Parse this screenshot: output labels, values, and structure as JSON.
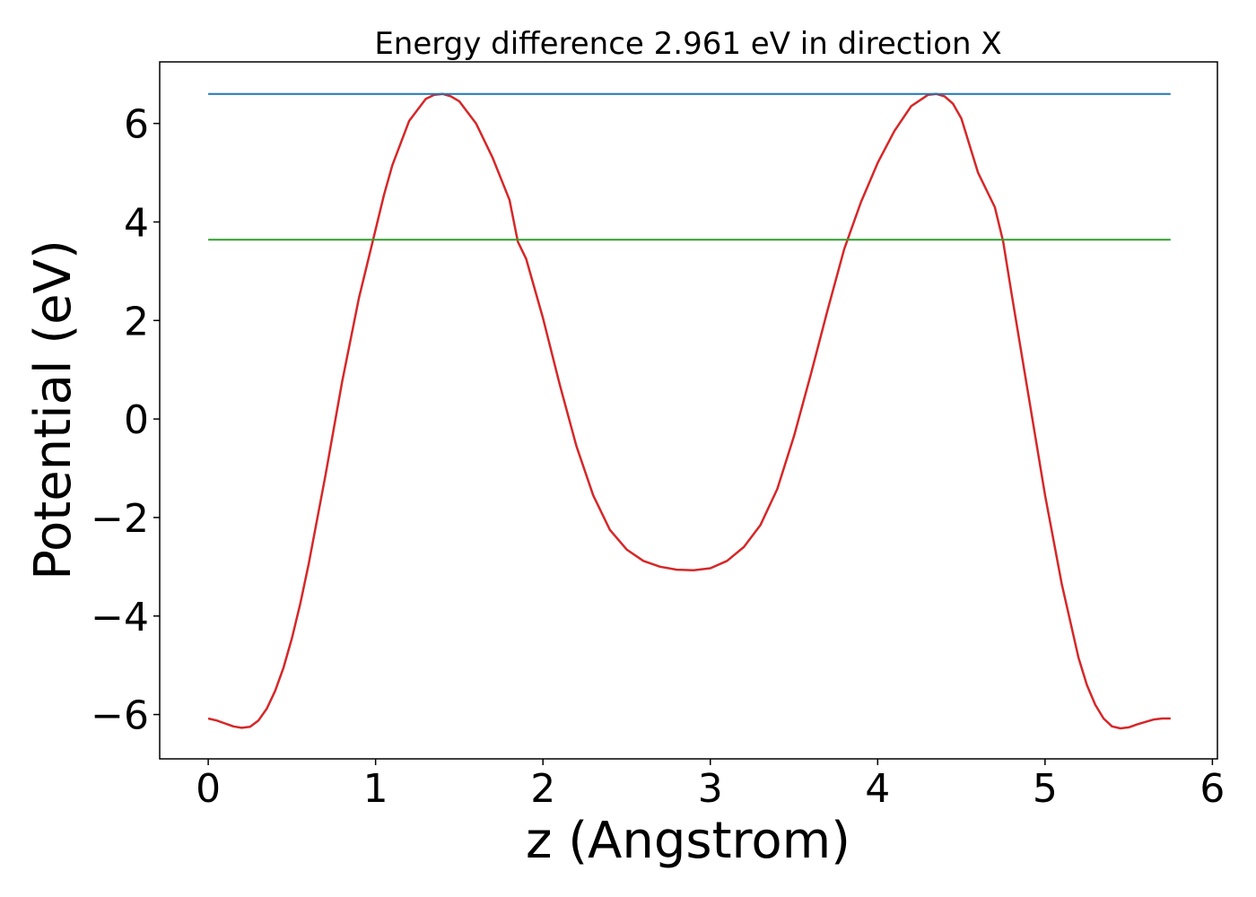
{
  "chart_data": {
    "type": "line",
    "title": "Energy difference 2.961 eV in direction X",
    "xlabel": "z (Angstrom)",
    "ylabel": "Potential (eV)",
    "xlim": [
      -0.29,
      6.03
    ],
    "ylim": [
      -6.9,
      7.25
    ],
    "xticks": [
      0,
      1,
      2,
      3,
      4,
      5,
      6
    ],
    "xtick_labels": [
      "0",
      "1",
      "2",
      "3",
      "4",
      "5",
      "6"
    ],
    "yticks": [
      -6,
      -4,
      -2,
      0,
      2,
      4,
      6
    ],
    "ytick_labels": [
      "−6",
      "−4",
      "−2",
      "0",
      "2",
      "4",
      "6"
    ],
    "grid": false,
    "series": [
      {
        "color": "#d62728",
        "x": [
          0,
          0.05,
          0.1,
          0.15,
          0.2,
          0.25,
          0.3,
          0.35,
          0.4,
          0.45,
          0.5,
          0.55,
          0.6,
          0.7,
          0.8,
          0.9,
          1.0,
          1.05,
          1.1,
          1.2,
          1.3,
          1.35,
          1.4,
          1.45,
          1.5,
          1.6,
          1.7,
          1.8,
          1.85,
          1.9,
          2.0,
          2.1,
          2.2,
          2.3,
          2.4,
          2.5,
          2.6,
          2.7,
          2.8,
          2.9,
          3.0,
          3.1,
          3.2,
          3.3,
          3.4,
          3.5,
          3.6,
          3.7,
          3.8,
          3.9,
          3.95,
          4.0,
          4.1,
          4.2,
          4.3,
          4.35,
          4.4,
          4.45,
          4.5,
          4.6,
          4.7,
          4.75,
          4.8,
          4.9,
          5.0,
          5.1,
          5.2,
          5.25,
          5.3,
          5.35,
          5.4,
          5.45,
          5.5,
          5.55,
          5.6,
          5.65,
          5.7,
          5.75
        ],
        "y": [
          -6.08,
          -6.12,
          -6.18,
          -6.24,
          -6.27,
          -6.25,
          -6.12,
          -5.88,
          -5.52,
          -5.05,
          -4.45,
          -3.75,
          -2.95,
          -1.15,
          0.75,
          2.45,
          3.85,
          4.55,
          5.15,
          6.05,
          6.5,
          6.58,
          6.6,
          6.55,
          6.45,
          6.0,
          5.3,
          4.45,
          3.6,
          3.25,
          2.05,
          0.7,
          -0.55,
          -1.55,
          -2.25,
          -2.65,
          -2.88,
          -3.0,
          -3.06,
          -3.07,
          -3.03,
          -2.88,
          -2.6,
          -2.15,
          -1.42,
          -0.35,
          0.9,
          2.2,
          3.45,
          4.4,
          4.8,
          5.2,
          5.85,
          6.35,
          6.58,
          6.6,
          6.55,
          6.4,
          6.1,
          5.0,
          4.3,
          3.6,
          2.55,
          0.5,
          -1.55,
          -3.35,
          -4.85,
          -5.4,
          -5.8,
          -6.08,
          -6.24,
          -6.28,
          -6.26,
          -6.2,
          -6.15,
          -6.1,
          -6.08,
          -6.08
        ]
      },
      {
        "color": "#1f77b4",
        "x": [
          0,
          5.75
        ],
        "y": [
          6.6,
          6.6
        ]
      },
      {
        "color": "#2ca02c",
        "x": [
          0,
          5.75
        ],
        "y": [
          3.64,
          3.64
        ]
      }
    ]
  }
}
